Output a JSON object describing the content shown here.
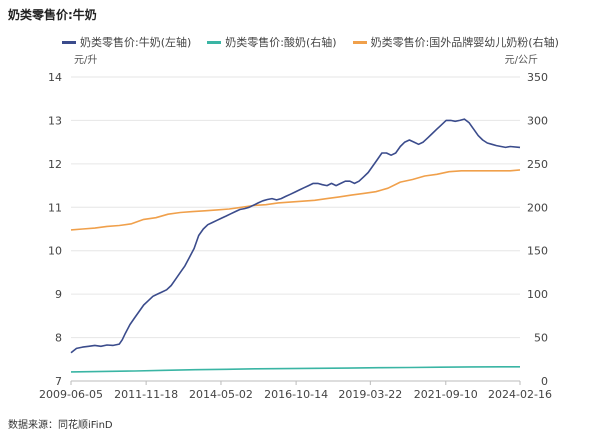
{
  "title": "奶类零售价:牛奶",
  "source": "数据来源：同花顺iFinD",
  "chart_data": {
    "type": "line",
    "left_unit": "元/升",
    "right_unit": "元/公斤",
    "y_left": {
      "min": 7,
      "max": 14,
      "ticks": [
        "7",
        "8",
        "9",
        "10",
        "11",
        "12",
        "13",
        "14"
      ]
    },
    "y_right": {
      "min": 0,
      "max": 350,
      "ticks": [
        "0",
        "50",
        "100",
        "150",
        "200",
        "250",
        "300",
        "350"
      ]
    },
    "x_range": [
      2009.42,
      2024.12
    ],
    "x_ticks": [
      {
        "label": "2009-06-05",
        "t": 2009.42
      },
      {
        "label": "2011-11-18",
        "t": 2011.88
      },
      {
        "label": "2014-05-02",
        "t": 2014.33
      },
      {
        "label": "2016-10-14",
        "t": 2016.79
      },
      {
        "label": "2019-03-22",
        "t": 2019.22
      },
      {
        "label": "2021-09-10",
        "t": 2021.69
      },
      {
        "label": "2024-02-16",
        "t": 2024.12
      }
    ],
    "grid": "horizontal",
    "legend_position": "top",
    "series": [
      {
        "name": "奶类零售价:牛奶(左轴)",
        "axis": "left",
        "color": "#3b4c8c",
        "points": [
          [
            2009.42,
            7.65
          ],
          [
            2009.6,
            7.75
          ],
          [
            2009.8,
            7.78
          ],
          [
            2010.0,
            7.8
          ],
          [
            2010.2,
            7.82
          ],
          [
            2010.4,
            7.8
          ],
          [
            2010.6,
            7.83
          ],
          [
            2010.8,
            7.82
          ],
          [
            2011.0,
            7.85
          ],
          [
            2011.1,
            7.95
          ],
          [
            2011.2,
            8.1
          ],
          [
            2011.35,
            8.3
          ],
          [
            2011.5,
            8.45
          ],
          [
            2011.65,
            8.6
          ],
          [
            2011.8,
            8.75
          ],
          [
            2011.95,
            8.85
          ],
          [
            2012.1,
            8.95
          ],
          [
            2012.25,
            9.0
          ],
          [
            2012.4,
            9.05
          ],
          [
            2012.55,
            9.1
          ],
          [
            2012.7,
            9.2
          ],
          [
            2012.85,
            9.35
          ],
          [
            2013.0,
            9.5
          ],
          [
            2013.15,
            9.65
          ],
          [
            2013.3,
            9.85
          ],
          [
            2013.45,
            10.05
          ],
          [
            2013.6,
            10.35
          ],
          [
            2013.75,
            10.5
          ],
          [
            2013.9,
            10.6
          ],
          [
            2014.05,
            10.65
          ],
          [
            2014.2,
            10.7
          ],
          [
            2014.35,
            10.75
          ],
          [
            2014.5,
            10.8
          ],
          [
            2014.65,
            10.85
          ],
          [
            2014.8,
            10.9
          ],
          [
            2014.95,
            10.95
          ],
          [
            2015.1,
            10.97
          ],
          [
            2015.25,
            11.0
          ],
          [
            2015.4,
            11.05
          ],
          [
            2015.55,
            11.1
          ],
          [
            2015.7,
            11.15
          ],
          [
            2015.85,
            11.18
          ],
          [
            2016.0,
            11.2
          ],
          [
            2016.15,
            11.17
          ],
          [
            2016.3,
            11.2
          ],
          [
            2016.45,
            11.25
          ],
          [
            2016.6,
            11.3
          ],
          [
            2016.75,
            11.35
          ],
          [
            2016.9,
            11.4
          ],
          [
            2017.05,
            11.45
          ],
          [
            2017.2,
            11.5
          ],
          [
            2017.35,
            11.55
          ],
          [
            2017.5,
            11.55
          ],
          [
            2017.65,
            11.52
          ],
          [
            2017.8,
            11.5
          ],
          [
            2017.95,
            11.55
          ],
          [
            2018.1,
            11.5
          ],
          [
            2018.25,
            11.55
          ],
          [
            2018.4,
            11.6
          ],
          [
            2018.55,
            11.6
          ],
          [
            2018.7,
            11.55
          ],
          [
            2018.85,
            11.6
          ],
          [
            2019.0,
            11.7
          ],
          [
            2019.15,
            11.8
          ],
          [
            2019.3,
            11.95
          ],
          [
            2019.45,
            12.1
          ],
          [
            2019.6,
            12.25
          ],
          [
            2019.75,
            12.25
          ],
          [
            2019.9,
            12.2
          ],
          [
            2020.05,
            12.25
          ],
          [
            2020.2,
            12.4
          ],
          [
            2020.35,
            12.5
          ],
          [
            2020.5,
            12.55
          ],
          [
            2020.65,
            12.5
          ],
          [
            2020.8,
            12.45
          ],
          [
            2020.95,
            12.5
          ],
          [
            2021.1,
            12.6
          ],
          [
            2021.25,
            12.7
          ],
          [
            2021.4,
            12.8
          ],
          [
            2021.55,
            12.9
          ],
          [
            2021.7,
            13.0
          ],
          [
            2021.85,
            13.0
          ],
          [
            2022.0,
            12.98
          ],
          [
            2022.15,
            13.0
          ],
          [
            2022.3,
            13.03
          ],
          [
            2022.45,
            12.95
          ],
          [
            2022.6,
            12.8
          ],
          [
            2022.75,
            12.65
          ],
          [
            2022.9,
            12.55
          ],
          [
            2023.05,
            12.48
          ],
          [
            2023.2,
            12.45
          ],
          [
            2023.35,
            12.42
          ],
          [
            2023.5,
            12.4
          ],
          [
            2023.65,
            12.38
          ],
          [
            2023.8,
            12.4
          ],
          [
            2024.12,
            12.38
          ]
        ]
      },
      {
        "name": "奶类零售价:酸奶(右轴)",
        "axis": "right",
        "color": "#3ab5a4",
        "points": [
          [
            2009.42,
            10.5
          ],
          [
            2010.5,
            11.0
          ],
          [
            2011.5,
            11.5
          ],
          [
            2012.5,
            12.3
          ],
          [
            2013.5,
            13.0
          ],
          [
            2014.5,
            13.5
          ],
          [
            2015.5,
            14.0
          ],
          [
            2016.5,
            14.3
          ],
          [
            2017.5,
            14.6
          ],
          [
            2018.5,
            14.9
          ],
          [
            2019.5,
            15.3
          ],
          [
            2020.5,
            15.6
          ],
          [
            2021.5,
            15.9
          ],
          [
            2022.5,
            16.2
          ],
          [
            2023.5,
            16.3
          ],
          [
            2024.12,
            16.3
          ]
        ]
      },
      {
        "name": "奶类零售价:国外品牌婴幼儿奶粉(右轴)",
        "axis": "right",
        "color": "#f0a04b",
        "points": [
          [
            2009.42,
            174
          ],
          [
            2009.8,
            175
          ],
          [
            2010.2,
            176
          ],
          [
            2010.6,
            178
          ],
          [
            2011.0,
            179
          ],
          [
            2011.4,
            181
          ],
          [
            2011.8,
            186
          ],
          [
            2012.2,
            188
          ],
          [
            2012.6,
            192
          ],
          [
            2013.0,
            194
          ],
          [
            2013.4,
            195
          ],
          [
            2013.8,
            196
          ],
          [
            2014.2,
            197
          ],
          [
            2014.6,
            198
          ],
          [
            2015.0,
            200
          ],
          [
            2015.4,
            202
          ],
          [
            2015.8,
            203
          ],
          [
            2016.2,
            205
          ],
          [
            2016.6,
            206
          ],
          [
            2017.0,
            207
          ],
          [
            2017.4,
            208
          ],
          [
            2017.8,
            210
          ],
          [
            2018.2,
            212
          ],
          [
            2018.6,
            214
          ],
          [
            2019.0,
            216
          ],
          [
            2019.4,
            218
          ],
          [
            2019.8,
            222
          ],
          [
            2020.2,
            229
          ],
          [
            2020.6,
            232
          ],
          [
            2021.0,
            236
          ],
          [
            2021.4,
            238
          ],
          [
            2021.8,
            241
          ],
          [
            2022.2,
            242
          ],
          [
            2022.6,
            242
          ],
          [
            2023.0,
            242
          ],
          [
            2023.4,
            242
          ],
          [
            2023.8,
            242
          ],
          [
            2024.12,
            243
          ]
        ]
      }
    ]
  }
}
